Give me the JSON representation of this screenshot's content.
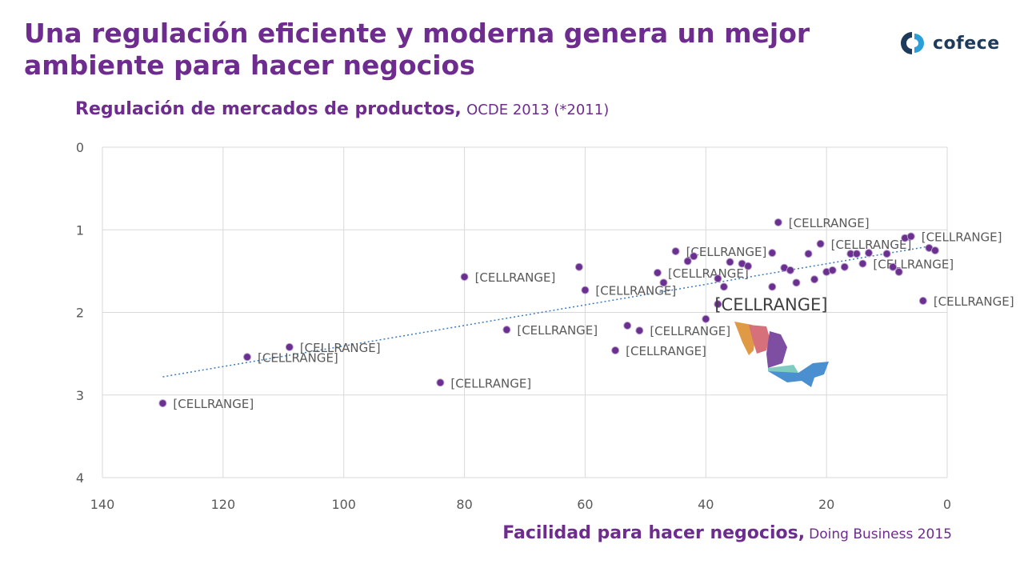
{
  "slide": {
    "title": "Una regulación eficiente y moderna genera un mejor ambiente para hacer negocios",
    "logo_text": "cofece",
    "logo_icon": "cofece-logo-icon",
    "colors": {
      "accent": "#6d2c8e",
      "point": "#6b2f8f",
      "trend": "#3a7bbf",
      "grid": "#d9d9d9",
      "logo": "#1f3b5c"
    }
  },
  "chart_data": {
    "type": "scatter",
    "title_strong": "Regulación de mercados de productos,",
    "title_light": "OCDE 2013 (*2011)",
    "xlabel_strong": "Facilidad para hacer negocios,",
    "xlabel_light": "Doing Business 2015",
    "xlim": [
      140,
      0
    ],
    "ylim": [
      4,
      0
    ],
    "x_reversed": true,
    "y_reversed": true,
    "x_ticks": [
      140,
      120,
      100,
      80,
      60,
      40,
      20,
      0
    ],
    "y_ticks": [
      0,
      1,
      2,
      3,
      4
    ],
    "grid": true,
    "trendline": {
      "style": "dotted",
      "x": [
        130,
        3
      ],
      "y": [
        2.78,
        1.2
      ]
    },
    "point_label_text": "[CELLRANGE]",
    "highlight_label_text": "[CELLRANGE]",
    "points": [
      {
        "x": 130,
        "y": 3.1,
        "label": "[CELLRANGE]"
      },
      {
        "x": 116,
        "y": 2.54,
        "label": "[CELLRANGE]"
      },
      {
        "x": 109,
        "y": 2.42,
        "label": "[CELLRANGE]"
      },
      {
        "x": 84,
        "y": 2.85,
        "label": "[CELLRANGE]"
      },
      {
        "x": 80,
        "y": 1.57,
        "label": "[CELLRANGE]"
      },
      {
        "x": 73,
        "y": 2.21,
        "label": "[CELLRANGE]"
      },
      {
        "x": 61,
        "y": 1.45,
        "label": ""
      },
      {
        "x": 60,
        "y": 1.73,
        "label": "[CELLRANGE]"
      },
      {
        "x": 55,
        "y": 2.46,
        "label": "[CELLRANGE]"
      },
      {
        "x": 53,
        "y": 2.16,
        "label": ""
      },
      {
        "x": 51,
        "y": 2.22,
        "label": "[CELLRANGE]"
      },
      {
        "x": 48,
        "y": 1.52,
        "label": "[CELLRANGE]"
      },
      {
        "x": 47,
        "y": 1.64,
        "label": ""
      },
      {
        "x": 45,
        "y": 1.26,
        "label": "[CELLRANGE]"
      },
      {
        "x": 43,
        "y": 1.38,
        "label": ""
      },
      {
        "x": 42,
        "y": 1.32,
        "label": ""
      },
      {
        "x": 40,
        "y": 2.08,
        "label": ""
      },
      {
        "x": 38,
        "y": 1.59,
        "label": ""
      },
      {
        "x": 38,
        "y": 1.9,
        "label": "[CELLRANGE]",
        "highlight": true
      },
      {
        "x": 37,
        "y": 1.69,
        "label": ""
      },
      {
        "x": 36,
        "y": 1.39,
        "label": ""
      },
      {
        "x": 34,
        "y": 1.41,
        "label": ""
      },
      {
        "x": 33,
        "y": 1.44,
        "label": ""
      },
      {
        "x": 29,
        "y": 1.28,
        "label": ""
      },
      {
        "x": 29,
        "y": 1.69,
        "label": ""
      },
      {
        "x": 28,
        "y": 0.91,
        "label": "[CELLRANGE]"
      },
      {
        "x": 27,
        "y": 1.46,
        "label": ""
      },
      {
        "x": 26,
        "y": 1.49,
        "label": ""
      },
      {
        "x": 25,
        "y": 1.64,
        "label": ""
      },
      {
        "x": 23,
        "y": 1.29,
        "label": ""
      },
      {
        "x": 22,
        "y": 1.6,
        "label": ""
      },
      {
        "x": 21,
        "y": 1.17,
        "label": "[CELLRANGE]"
      },
      {
        "x": 20,
        "y": 1.51,
        "label": ""
      },
      {
        "x": 19,
        "y": 1.49,
        "label": ""
      },
      {
        "x": 17,
        "y": 1.45,
        "label": ""
      },
      {
        "x": 16,
        "y": 1.29,
        "label": ""
      },
      {
        "x": 15,
        "y": 1.29,
        "label": ""
      },
      {
        "x": 14,
        "y": 1.41,
        "label": "[CELLRANGE]"
      },
      {
        "x": 13,
        "y": 1.28,
        "label": ""
      },
      {
        "x": 10,
        "y": 1.29,
        "label": ""
      },
      {
        "x": 9,
        "y": 1.45,
        "label": ""
      },
      {
        "x": 8,
        "y": 1.51,
        "label": ""
      },
      {
        "x": 7,
        "y": 1.1,
        "label": ""
      },
      {
        "x": 6,
        "y": 1.08,
        "label": "[CELLRANGE]"
      },
      {
        "x": 4,
        "y": 1.86,
        "label": "[CELLRANGE]"
      },
      {
        "x": 3,
        "y": 1.22,
        "label": ""
      },
      {
        "x": 2,
        "y": 1.25,
        "label": ""
      }
    ]
  }
}
